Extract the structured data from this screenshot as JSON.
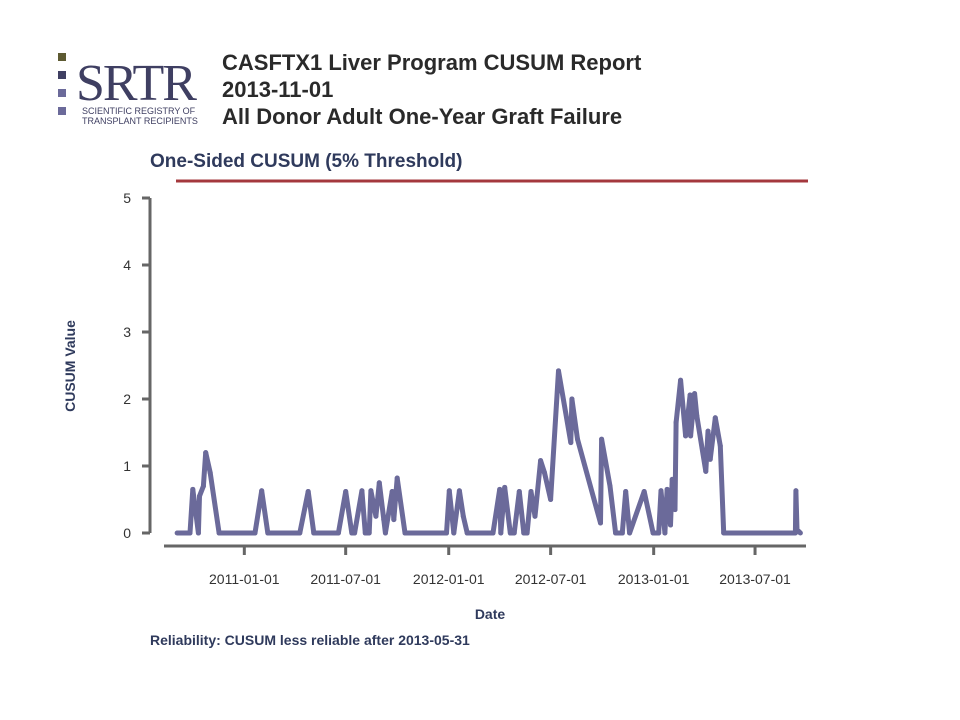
{
  "header": {
    "logo_text": "SRTR",
    "logo_sub_line1": "SCIENTIFIC REGISTRY OF",
    "logo_sub_line2": "TRANSPLANT RECIPIENTS",
    "title_line1": "CASFTX1 Liver Program CUSUM Report",
    "title_line2": "2013-11-01",
    "title_line3": "All Donor Adult One-Year Graft Failure"
  },
  "colors": {
    "series": "#6b6a9a",
    "threshold": "#a4383d",
    "axis": "#666666",
    "logo_dark": "#3f3f62",
    "logo_olive": "#5d5a32"
  },
  "chart_data": {
    "type": "line",
    "title": "One-Sided CUSUM (5% Threshold)",
    "xlabel": "Date",
    "ylabel": "CUSUM Value",
    "footnote": "Reliability: CUSUM less reliable after 2013-05-31",
    "ylim": [
      0,
      5
    ],
    "yticks": [
      0,
      1,
      2,
      3,
      4,
      5
    ],
    "xlim": [
      "2010-09-01",
      "2013-09-30"
    ],
    "xticks": [
      "2011-01-01",
      "2011-07-01",
      "2012-01-01",
      "2012-07-01",
      "2013-01-01",
      "2013-07-01"
    ],
    "threshold": 5,
    "grid": false,
    "series": [
      {
        "x": [
          "2010-09-03",
          "2010-09-26",
          "2010-10-01",
          "2010-10-11",
          "2010-10-13",
          "2010-10-20",
          "2010-10-24",
          "2010-11-01",
          "2010-11-17",
          "2010-12-15",
          "2011-01-20",
          "2011-02-01",
          "2011-02-12",
          "2011-04-10",
          "2011-04-25",
          "2011-05-05",
          "2011-06-18",
          "2011-07-01",
          "2011-07-12",
          "2011-07-17",
          "2011-07-30",
          "2011-08-05",
          "2011-08-12",
          "2011-08-15",
          "2011-08-24",
          "2011-08-30",
          "2011-09-07",
          "2011-09-10",
          "2011-09-22",
          "2011-09-25",
          "2011-10-01",
          "2011-10-15",
          "2011-11-25",
          "2011-12-28",
          "2012-01-02",
          "2012-01-10",
          "2012-01-20",
          "2012-01-27",
          "2012-02-03",
          "2012-03-07",
          "2012-03-20",
          "2012-04-01",
          "2012-04-03",
          "2012-04-10",
          "2012-04-20",
          "2012-04-27",
          "2012-05-06",
          "2012-05-14",
          "2012-05-20",
          "2012-05-27",
          "2012-06-03",
          "2012-06-13",
          "2012-06-20",
          "2012-07-01",
          "2012-07-15",
          "2012-08-06",
          "2012-08-08",
          "2012-08-18",
          "2012-09-28",
          "2012-09-30",
          "2012-10-15",
          "2012-10-25",
          "2012-11-06",
          "2012-11-12",
          "2012-11-19",
          "2012-12-15",
          "2012-12-31",
          "2013-01-10",
          "2013-01-14",
          "2013-01-21",
          "2013-01-25",
          "2013-01-31",
          "2013-02-03",
          "2013-02-08",
          "2013-02-10",
          "2013-02-18",
          "2013-02-27",
          "2013-03-07",
          "2013-03-08",
          "2013-03-15",
          "2013-03-19",
          "2013-04-04",
          "2013-04-08",
          "2013-04-12",
          "2013-04-21",
          "2013-04-30",
          "2013-05-06",
          "2013-05-17",
          "2013-06-22",
          "2013-07-15",
          "2013-08-20",
          "2013-09-11",
          "2013-09-12",
          "2013-09-14",
          "2013-09-20"
        ],
        "values": [
          0,
          0,
          0.65,
          0,
          0.55,
          0.7,
          1.2,
          0.9,
          0,
          0,
          0,
          0.63,
          0,
          0,
          0.62,
          0,
          0,
          0.62,
          0,
          0,
          0.63,
          0,
          0,
          0.63,
          0.25,
          0.75,
          0.2,
          0,
          0.62,
          0.2,
          0.82,
          0,
          0,
          0,
          0.63,
          0,
          0.63,
          0.25,
          0,
          0,
          0,
          0.65,
          0,
          0.68,
          0,
          0,
          0.62,
          0,
          0,
          0.62,
          0.25,
          1.08,
          0.9,
          0.5,
          2.42,
          1.35,
          2,
          1.4,
          0.15,
          1.4,
          0.7,
          0,
          0,
          0.62,
          0,
          0.62,
          0,
          0,
          0.63,
          0,
          0.65,
          0.12,
          0.8,
          0.35,
          1.65,
          2.28,
          1.45,
          2.06,
          1.45,
          2.08,
          1.75,
          0.92,
          1.52,
          1.1,
          1.72,
          1.3,
          0,
          0,
          0,
          0,
          0,
          0,
          0.63,
          0.05,
          0
        ]
      }
    ]
  }
}
